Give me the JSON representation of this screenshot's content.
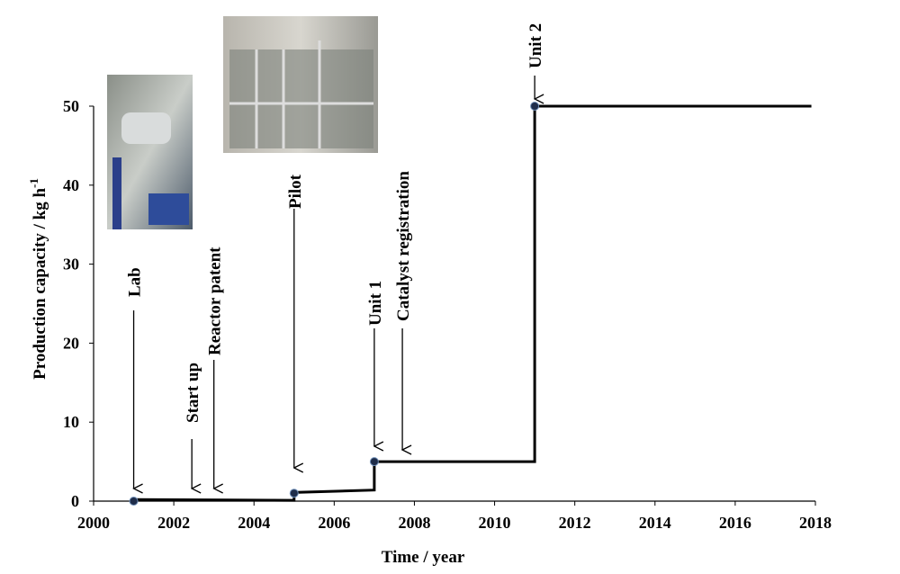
{
  "chart_data": {
    "type": "line",
    "y_label": "Production capacity / kg h",
    "y_label_sup": "-1",
    "x_label": "Time / year",
    "xlim": [
      2000,
      2018
    ],
    "xticks": [
      2000,
      2002,
      2004,
      2006,
      2008,
      2010,
      2012,
      2014,
      2016,
      2018
    ],
    "ylim": [
      0,
      50
    ],
    "yticks": [
      0,
      10,
      20,
      30,
      40,
      50
    ],
    "series": [
      {
        "style": "solid",
        "color": "#000000",
        "x": [
          2001,
          2005,
          2005,
          2007,
          2007,
          2011,
          2011,
          2017.9
        ],
        "values": [
          0.2,
          0.1,
          1.1,
          1.4,
          5,
          5,
          50,
          50
        ]
      },
      {
        "style": "dashed",
        "color": "#000000",
        "x": [
          2007,
          2007
        ],
        "values": [
          1.4,
          5
        ]
      },
      {
        "style": "dashed",
        "color": "#000000",
        "x": [
          2011,
          2011
        ],
        "values": [
          5,
          50
        ]
      },
      {
        "style": "markers",
        "color": "#1f2d4a",
        "x": [
          2001,
          2005,
          2007,
          2011
        ],
        "values": [
          0,
          1,
          5,
          50
        ]
      }
    ],
    "annotations": [
      {
        "text": "Lab",
        "x": 2001
      },
      {
        "text": "Start up",
        "x": 2002.45
      },
      {
        "text": "Reactor patent",
        "x": 2003
      },
      {
        "text": "Pilot",
        "x": 2005
      },
      {
        "text": "Unit 1",
        "x": 2007
      },
      {
        "text": "Catalyst registration",
        "x": 2007.7
      },
      {
        "text": "Unit 2",
        "x": 2011
      }
    ]
  }
}
